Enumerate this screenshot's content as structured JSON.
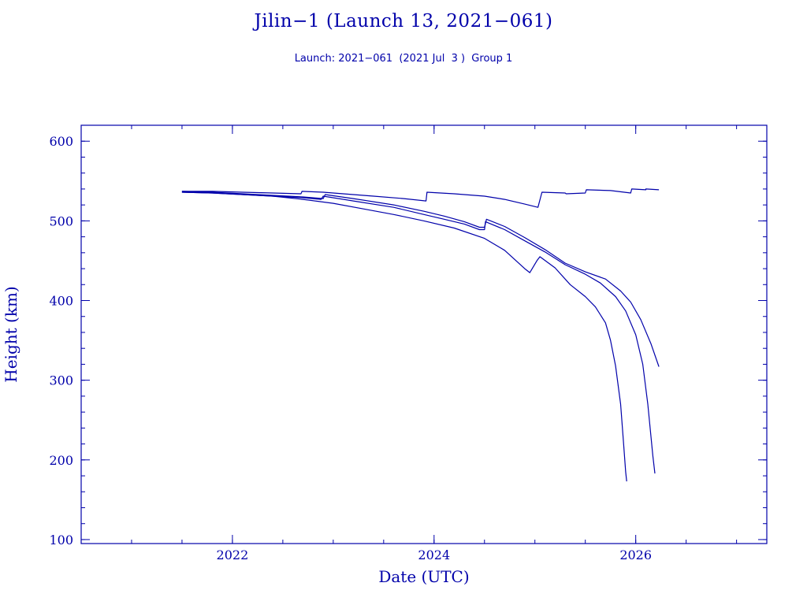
{
  "header": {
    "title": "Jilin−1 (Launch 13, 2021−061)",
    "subtitle": "Launch: 2021−061  (2021 Jul  3 )  Group 1"
  },
  "chart_data": {
    "type": "line",
    "title": "Jilin−1 (Launch 13, 2021−061)",
    "subtitle": "Launch: 2021−061  (2021 Jul  3 )  Group 1",
    "xlabel": "Date (UTC)",
    "ylabel": "Height (km)",
    "xlim": [
      2020.5,
      2027.3
    ],
    "ylim": [
      95,
      620
    ],
    "x_ticks": [
      2022,
      2024,
      2026
    ],
    "y_ticks": [
      100,
      200,
      300,
      400,
      500,
      600
    ],
    "x_minor_step": 0.5,
    "y_minor_step": 20,
    "grid": false,
    "color": "#0000aa",
    "series": [
      {
        "x": [
          2021.5,
          2021.8,
          2022.1,
          2022.4,
          2022.68,
          2022.69,
          2022.9,
          2023.1,
          2023.4,
          2023.7,
          2023.92,
          2023.93,
          2024.2,
          2024.5,
          2024.7,
          2024.9,
          2025.03,
          2025.07,
          2025.3,
          2025.31,
          2025.5,
          2025.51,
          2025.75,
          2025.95,
          2025.96,
          2026.1,
          2026.1,
          2026.23
        ],
        "y": [
          537,
          537,
          536,
          535,
          534,
          537,
          536,
          534,
          531,
          528,
          525,
          536,
          534,
          531,
          527,
          521,
          517,
          536,
          535,
          534,
          535,
          539,
          538,
          535,
          540,
          539,
          540,
          539
        ]
      },
      {
        "x": [
          2021.5,
          2021.8,
          2022.1,
          2022.4,
          2022.7,
          2022.9,
          2022.92,
          2023.2,
          2023.6,
          2023.9,
          2024.1,
          2024.3,
          2024.45,
          2024.5,
          2024.52,
          2024.7,
          2024.9,
          2025.1,
          2025.3,
          2025.5,
          2025.7,
          2025.85,
          2025.95,
          2026.05,
          2026.15,
          2026.23
        ],
        "y": [
          537,
          536,
          534,
          532,
          530,
          528,
          533,
          528,
          520,
          512,
          506,
          499,
          492,
          492,
          502,
          493,
          479,
          464,
          447,
          436,
          427,
          412,
          398,
          376,
          346,
          317
        ]
      },
      {
        "x": [
          2021.5,
          2021.8,
          2022.1,
          2022.4,
          2022.7,
          2022.88,
          2022.9,
          2023.2,
          2023.6,
          2023.9,
          2024.1,
          2024.3,
          2024.45,
          2024.5,
          2024.51,
          2024.7,
          2024.9,
          2025.1,
          2025.3,
          2025.5,
          2025.65,
          2025.8,
          2025.9,
          2026.0,
          2026.07,
          2026.12,
          2026.17,
          2026.19
        ],
        "y": [
          536,
          535,
          533,
          531,
          529,
          527,
          531,
          525,
          517,
          508,
          502,
          496,
          489,
          489,
          499,
          489,
          475,
          461,
          445,
          433,
          422,
          405,
          387,
          357,
          320,
          270,
          205,
          183
        ]
      },
      {
        "x": [
          2021.5,
          2021.8,
          2022.1,
          2022.4,
          2022.7,
          2023.0,
          2023.3,
          2023.6,
          2023.9,
          2024.2,
          2024.5,
          2024.7,
          2024.9,
          2024.95,
          2025.02,
          2025.05,
          2025.2,
          2025.35,
          2025.5,
          2025.6,
          2025.7,
          2025.75,
          2025.8,
          2025.85,
          2025.88,
          2025.9,
          2025.91
        ],
        "y": [
          536,
          535,
          533,
          531,
          527,
          522,
          515,
          508,
          500,
          491,
          478,
          463,
          440,
          435,
          450,
          455,
          441,
          420,
          405,
          392,
          372,
          350,
          318,
          270,
          220,
          185,
          173
        ]
      }
    ]
  }
}
